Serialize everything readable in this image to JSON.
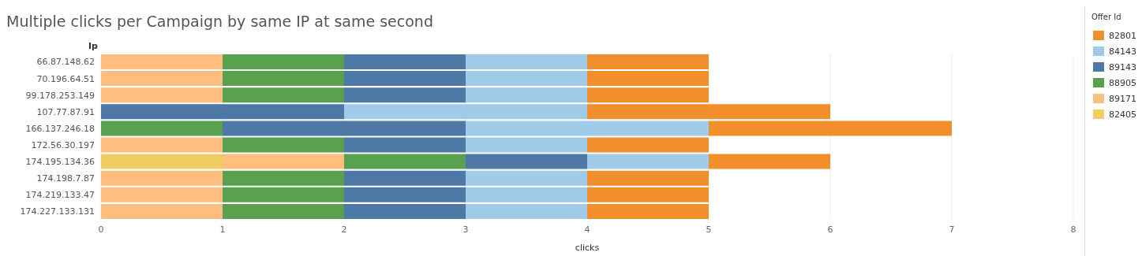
{
  "chart_data": {
    "type": "bar",
    "orientation": "horizontal",
    "stacked": true,
    "title": "Multiple clicks per Campaign by same IP at same second",
    "xlabel": "clicks",
    "ylabel": "Ip",
    "legend_title": "Offer Id",
    "legend": "right",
    "grid": "x",
    "categories": [
      "66.87.148.62",
      "70.196.64.51",
      "99.178.253.149",
      "107.77.87.91",
      "166.137.246.18",
      "172.56.30.197",
      "174.195.134.36",
      "174.198.7.87",
      "174.219.133.47",
      "174.227.133.131"
    ],
    "xlim": [
      0,
      8
    ],
    "xticks": [
      0,
      1,
      2,
      3,
      4,
      5,
      6,
      7,
      8
    ],
    "series": [
      {
        "name": "82405",
        "color": "#f1ce63",
        "values": [
          null,
          null,
          null,
          null,
          null,
          null,
          1,
          null,
          null,
          null
        ]
      },
      {
        "name": "89171",
        "color": "#ffbe7d",
        "values": [
          1,
          1,
          1,
          null,
          null,
          1,
          1,
          1,
          1,
          1
        ]
      },
      {
        "name": "88905",
        "color": "#59a14f",
        "values": [
          1,
          1,
          1,
          null,
          1,
          1,
          1,
          1,
          1,
          1
        ]
      },
      {
        "name": "89143",
        "color": "#4e79a7",
        "values": [
          1,
          1,
          1,
          2,
          2,
          1,
          1,
          1,
          1,
          1
        ]
      },
      {
        "name": "84143",
        "color": "#a0cbe8",
        "values": [
          1,
          1,
          1,
          2,
          2,
          1,
          1,
          1,
          1,
          1
        ]
      },
      {
        "name": "82801",
        "color": "#f28e2b",
        "values": [
          1,
          1,
          1,
          2,
          2,
          1,
          1,
          1,
          1,
          1
        ]
      }
    ]
  }
}
